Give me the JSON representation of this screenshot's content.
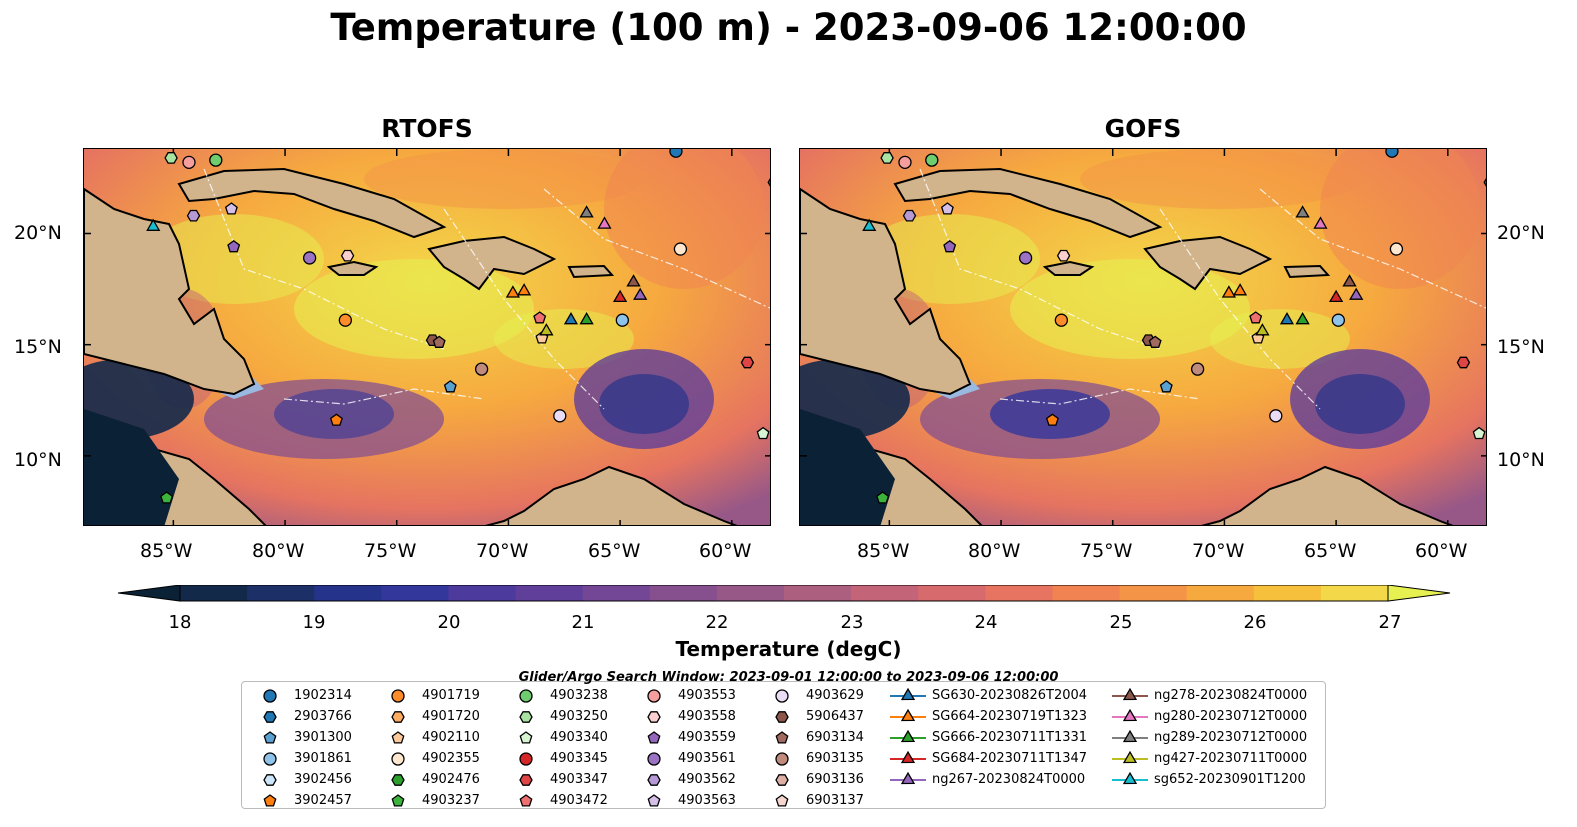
{
  "title": "Temperature (100 m) - 2023-09-06 12:00:00",
  "panels": [
    {
      "title": "RTOFS"
    },
    {
      "title": "GOFS"
    }
  ],
  "lat_ticks": [
    "20°N",
    "15°N",
    "10°N"
  ],
  "lon_ticks": [
    "85°W",
    "80°W",
    "75°W",
    "70°W",
    "65°W",
    "60°W"
  ],
  "colorbar": {
    "label": "Temperature (degC)",
    "ticks": [
      "18",
      "19",
      "20",
      "21",
      "22",
      "23",
      "24",
      "25",
      "26",
      "27"
    ],
    "colors": [
      "#0b2135",
      "#13294a",
      "#1c2f66",
      "#26338a",
      "#33379c",
      "#4c3a9d",
      "#603f9a",
      "#744796",
      "#86508f",
      "#985887",
      "#ad5f80",
      "#c46478",
      "#d76a6d",
      "#e67460",
      "#f08351",
      "#f49447",
      "#f6a93f",
      "#f7c03c",
      "#f3d849",
      "#e6f050"
    ],
    "land_color": "#d2b48c",
    "shelf_color": "#9ab9e0"
  },
  "legend": {
    "caption": "Glider/Argo Search Window: 2023-09-01 12:00:00 to 2023-09-06 12:00:00",
    "columns": [
      [
        {
          "label": "1902314",
          "shape": "circle",
          "color": "#1f77b4"
        },
        {
          "label": "2903766",
          "shape": "hexagon",
          "color": "#1f77b4"
        },
        {
          "label": "3901300",
          "shape": "pentagon",
          "color": "#5aa0d0"
        },
        {
          "label": "3901861",
          "shape": "circle",
          "color": "#8fc3ea"
        },
        {
          "label": "3902456",
          "shape": "hexagon",
          "color": "#cce7fa"
        },
        {
          "label": "3902457",
          "shape": "pentagon",
          "color": "#ff7f0e"
        }
      ],
      [
        {
          "label": "4901719",
          "shape": "circle",
          "color": "#ff8c2a"
        },
        {
          "label": "4901720",
          "shape": "hexagon",
          "color": "#ffac63"
        },
        {
          "label": "4902110",
          "shape": "pentagon",
          "color": "#ffc99c"
        },
        {
          "label": "4902355",
          "shape": "circle",
          "color": "#ffe6cf"
        },
        {
          "label": "4902476",
          "shape": "hexagon",
          "color": "#2ca02c"
        },
        {
          "label": "4903237",
          "shape": "pentagon",
          "color": "#3cb43c"
        }
      ],
      [
        {
          "label": "4903238",
          "shape": "circle",
          "color": "#6fcd6f"
        },
        {
          "label": "4903250",
          "shape": "hexagon",
          "color": "#a8e3a2"
        },
        {
          "label": "4903340",
          "shape": "pentagon",
          "color": "#d6f5d0"
        },
        {
          "label": "4903345",
          "shape": "circle",
          "color": "#d62728"
        },
        {
          "label": "4903347",
          "shape": "hexagon",
          "color": "#e04545"
        },
        {
          "label": "4903472",
          "shape": "pentagon",
          "color": "#ee6f6f"
        }
      ],
      [
        {
          "label": "4903553",
          "shape": "circle",
          "color": "#f59e9e"
        },
        {
          "label": "4903558",
          "shape": "hexagon",
          "color": "#fbcfcf"
        },
        {
          "label": "4903559",
          "shape": "pentagon",
          "color": "#9467bd"
        },
        {
          "label": "4903561",
          "shape": "circle",
          "color": "#9b72c4"
        },
        {
          "label": "4903562",
          "shape": "hexagon",
          "color": "#b799d6"
        },
        {
          "label": "4903563",
          "shape": "pentagon",
          "color": "#d3bfe8"
        }
      ],
      [
        {
          "label": "4903629",
          "shape": "circle",
          "color": "#eadcf5"
        },
        {
          "label": "5906437",
          "shape": "hexagon",
          "color": "#8c564b"
        },
        {
          "label": "6903134",
          "shape": "pentagon",
          "color": "#a06a5e"
        },
        {
          "label": "6903135",
          "shape": "circle",
          "color": "#c08a7d"
        },
        {
          "label": "6903136",
          "shape": "hexagon",
          "color": "#deb0a5"
        },
        {
          "label": "6903137",
          "shape": "pentagon",
          "color": "#f5d7cf"
        }
      ],
      [
        {
          "label": "SG630-20230826T2004",
          "shape": "triangle",
          "color": "#1f77b4"
        },
        {
          "label": "SG664-20230719T1323",
          "shape": "triangle",
          "color": "#ff7f0e"
        },
        {
          "label": "SG666-20230711T1331",
          "shape": "triangle",
          "color": "#2ca02c"
        },
        {
          "label": "SG684-20230711T1347",
          "shape": "triangle",
          "color": "#d62728"
        },
        {
          "label": "ng267-20230824T0000",
          "shape": "triangle",
          "color": "#9467bd"
        }
      ],
      [
        {
          "label": "ng278-20230824T0000",
          "shape": "triangle",
          "color": "#8c564b"
        },
        {
          "label": "ng280-20230712T0000",
          "shape": "triangle",
          "color": "#e377c2"
        },
        {
          "label": "ng289-20230712T0000",
          "shape": "triangle",
          "color": "#7f7f7f"
        },
        {
          "label": "ng427-20230711T0000",
          "shape": "triangle",
          "color": "#bcbd22"
        },
        {
          "label": "sg652-20230901T1200",
          "shape": "triangle",
          "color": "#17becf"
        }
      ]
    ]
  },
  "markers": [
    {
      "id": "1902314",
      "lon": -62.5,
      "lat": 23.7
    },
    {
      "id": "2903766",
      "lon": -58.1,
      "lat": 22.3
    },
    {
      "id": "4903250",
      "lon": -85.1,
      "lat": 23.4
    },
    {
      "id": "4903553",
      "lon": -84.3,
      "lat": 23.2
    },
    {
      "id": "4903238",
      "lon": -83.1,
      "lat": 23.3
    },
    {
      "id": "4903562",
      "lon": -84.1,
      "lat": 20.8
    },
    {
      "id": "4903563",
      "lon": -82.4,
      "lat": 21.1
    },
    {
      "id": "4903559",
      "lon": -82.3,
      "lat": 19.4
    },
    {
      "id": "4903561",
      "lon": -78.9,
      "lat": 18.9
    },
    {
      "id": "4903558",
      "lon": -77.2,
      "lat": 19.0
    },
    {
      "id": "4901719",
      "lon": -77.3,
      "lat": 16.1
    },
    {
      "id": "4902355",
      "lon": -62.3,
      "lat": 19.3
    },
    {
      "id": "4903472",
      "lon": -68.6,
      "lat": 16.2
    },
    {
      "id": "4902110",
      "lon": -68.5,
      "lat": 15.3
    },
    {
      "id": "3901861",
      "lon": -64.9,
      "lat": 16.1
    },
    {
      "id": "5906437",
      "lon": -73.4,
      "lat": 15.2
    },
    {
      "id": "6903134",
      "lon": -73.1,
      "lat": 15.1
    },
    {
      "id": "6903135",
      "lon": -71.2,
      "lat": 13.9
    },
    {
      "id": "3901300",
      "lon": -72.6,
      "lat": 13.1
    },
    {
      "id": "3902457",
      "lon": -77.7,
      "lat": 11.6
    },
    {
      "id": "4903629",
      "lon": -67.7,
      "lat": 11.8
    },
    {
      "id": "4903347",
      "lon": -59.3,
      "lat": 14.2
    },
    {
      "id": "4903340",
      "lon": -58.6,
      "lat": 11.0
    },
    {
      "id": "4903237",
      "lon": -85.3,
      "lat": 8.1
    },
    {
      "id": "sg652-20230901T1200",
      "lon": -85.9,
      "lat": 20.3
    },
    {
      "id": "ng289-20230712T0000",
      "lon": -66.5,
      "lat": 20.9
    },
    {
      "id": "ng280-20230712T0000",
      "lon": -65.7,
      "lat": 20.4
    },
    {
      "id": "SG664-20230719T1323",
      "lon": -69.8,
      "lat": 17.3
    },
    {
      "id": "SG664-20230719T1323",
      "lon": -69.3,
      "lat": 17.4
    },
    {
      "id": "SG630-20230826T2004",
      "lon": -67.2,
      "lat": 16.1
    },
    {
      "id": "SG666-20230711T1331",
      "lon": -66.5,
      "lat": 16.1
    },
    {
      "id": "SG684-20230711T1347",
      "lon": -65.0,
      "lat": 17.1
    },
    {
      "id": "ng278-20230824T0000",
      "lon": -64.4,
      "lat": 17.8
    },
    {
      "id": "ng267-20230824T0000",
      "lon": -64.1,
      "lat": 17.2
    },
    {
      "id": "ng427-20230711T0000",
      "lon": -68.3,
      "lat": 15.6
    }
  ]
}
